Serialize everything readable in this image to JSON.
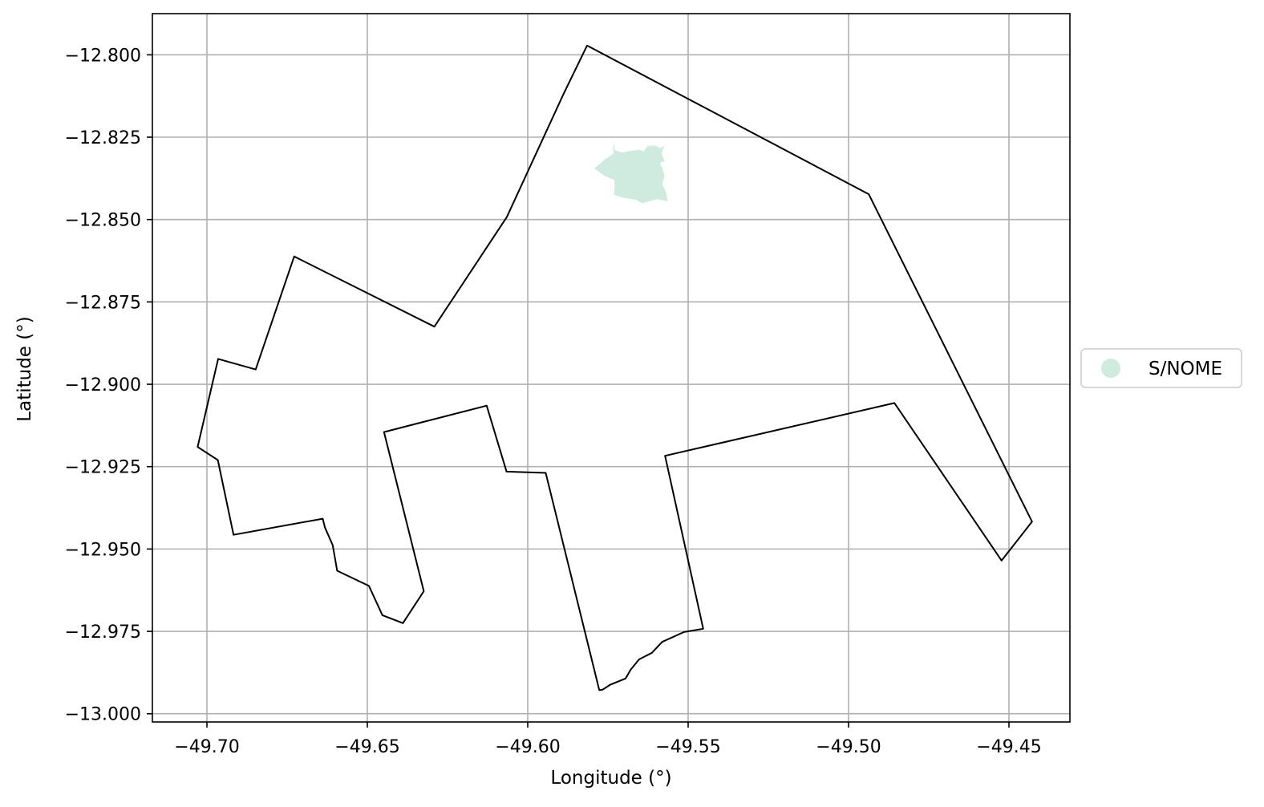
{
  "map": {
    "xlabel": "Longitude (°)",
    "ylabel": "Latitude (°)",
    "xlim": [
      -49.717,
      -49.431
    ],
    "ylim": [
      -13.0025,
      -12.7875
    ],
    "grid": true,
    "x_ticks": [
      -49.7,
      -49.65,
      -49.6,
      -49.55,
      -49.5,
      -49.45
    ],
    "x_tick_labels": [
      "−49.70",
      "−49.65",
      "−49.60",
      "−49.55",
      "−49.50",
      "−49.45"
    ],
    "y_ticks": [
      -12.8,
      -12.825,
      -12.85,
      -12.875,
      -12.9,
      -12.925,
      -12.95,
      -12.975,
      -13.0
    ],
    "y_tick_labels": [
      "−12.800",
      "−12.825",
      "−12.850",
      "−12.875",
      "−12.900",
      "−12.925",
      "−12.950",
      "−12.975",
      "−13.000"
    ],
    "legend": {
      "placement": "right-center",
      "entries": [
        {
          "label": "S/NOME",
          "color": "#cfebe0"
        }
      ]
    },
    "boundary_color": "#000000",
    "boundary": [
      [
        -49.5815,
        -12.7972
      ],
      [
        -49.4937,
        -12.8423
      ],
      [
        -49.4428,
        -12.9417
      ],
      [
        -49.4523,
        -12.9535
      ],
      [
        -49.4857,
        -12.9057
      ],
      [
        -49.5572,
        -12.9217
      ],
      [
        -49.5453,
        -12.9742
      ],
      [
        -49.5513,
        -12.9752
      ],
      [
        -49.5581,
        -12.9782
      ],
      [
        -49.5613,
        -12.9815
      ],
      [
        -49.5653,
        -12.9835
      ],
      [
        -49.5679,
        -12.9866
      ],
      [
        -49.5695,
        -12.9893
      ],
      [
        -49.5743,
        -12.9912
      ],
      [
        -49.5767,
        -12.9927
      ],
      [
        -49.5777,
        -12.9928
      ],
      [
        -49.5944,
        -12.9269
      ],
      [
        -49.6066,
        -12.9265
      ],
      [
        -49.6128,
        -12.9065
      ],
      [
        -49.6448,
        -12.9145
      ],
      [
        -49.6324,
        -12.9628
      ],
      [
        -49.6389,
        -12.9725
      ],
      [
        -49.6453,
        -12.9701
      ],
      [
        -49.6495,
        -12.9612
      ],
      [
        -49.6594,
        -12.9566
      ],
      [
        -49.6608,
        -12.9488
      ],
      [
        -49.6632,
        -12.9435
      ],
      [
        -49.6639,
        -12.9408
      ],
      [
        -49.6917,
        -12.9457
      ],
      [
        -49.6966,
        -12.923
      ],
      [
        -49.7029,
        -12.919
      ],
      [
        -49.6965,
        -12.8923
      ],
      [
        -49.6848,
        -12.8955
      ],
      [
        -49.6728,
        -12.8612
      ],
      [
        -49.6291,
        -12.8825
      ],
      [
        -49.6065,
        -12.8492
      ],
      [
        -49.5888,
        -12.8118
      ],
      [
        -49.5815,
        -12.7972
      ]
    ],
    "area": {
      "name": "S/NOME",
      "color": "#cfebe0",
      "polygon": [
        [
          -49.5733,
          -12.8262
        ],
        [
          -49.5728,
          -12.829
        ],
        [
          -49.5704,
          -12.8297
        ],
        [
          -49.5692,
          -12.8293
        ],
        [
          -49.5652,
          -12.8288
        ],
        [
          -49.5638,
          -12.8293
        ],
        [
          -49.5628,
          -12.8278
        ],
        [
          -49.5605,
          -12.8275
        ],
        [
          -49.5585,
          -12.8283
        ],
        [
          -49.5573,
          -12.8275
        ],
        [
          -49.5583,
          -12.83
        ],
        [
          -49.5573,
          -12.8323
        ],
        [
          -49.5588,
          -12.8328
        ],
        [
          -49.558,
          -12.8345
        ],
        [
          -49.5573,
          -12.8368
        ],
        [
          -49.5581,
          -12.8392
        ],
        [
          -49.557,
          -12.8415
        ],
        [
          -49.5563,
          -12.8445
        ],
        [
          -49.5595,
          -12.8438
        ],
        [
          -49.5643,
          -12.845
        ],
        [
          -49.5663,
          -12.844
        ],
        [
          -49.5705,
          -12.8433
        ],
        [
          -49.5731,
          -12.8425
        ],
        [
          -49.5729,
          -12.84
        ],
        [
          -49.573,
          -12.838
        ],
        [
          -49.576,
          -12.8368
        ],
        [
          -49.5793,
          -12.8345
        ],
        [
          -49.576,
          -12.8318
        ],
        [
          -49.5733,
          -12.83
        ],
        [
          -49.5733,
          -12.8262
        ]
      ]
    }
  }
}
